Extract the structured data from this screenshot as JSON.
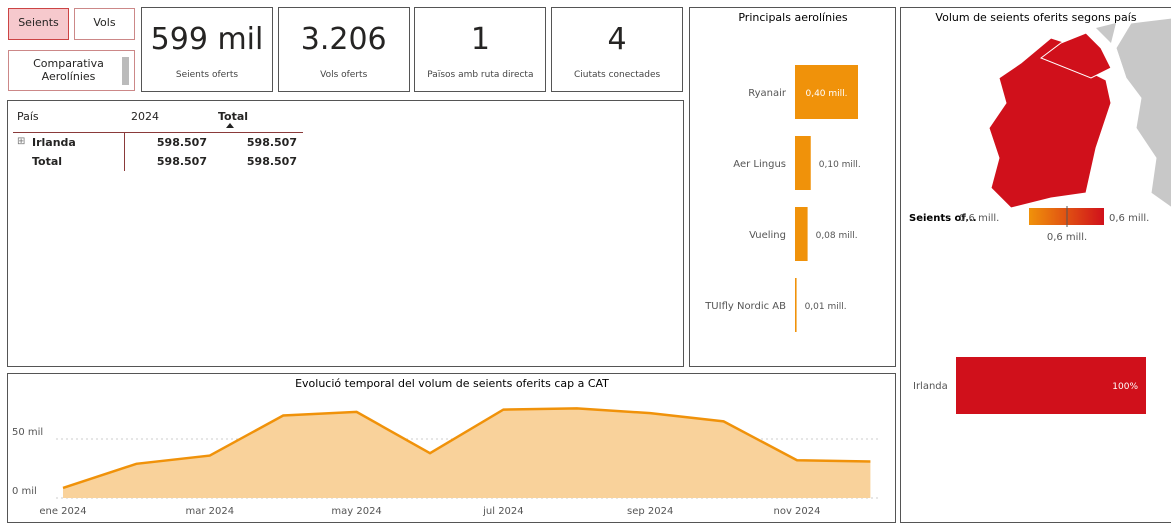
{
  "buttons": [
    "Seients",
    "Vols",
    "Comparativa Aerolínies"
  ],
  "kpis": [
    {
      "value": "599 mil",
      "label": "Seients oferts"
    },
    {
      "value": "3.206",
      "label": "Vols oferts"
    },
    {
      "value": "1",
      "label": "Països amb ruta directa"
    },
    {
      "value": "4",
      "label": "Ciutats conectades"
    }
  ],
  "table": {
    "headers": [
      "País",
      "2024",
      "Total"
    ],
    "rows": [
      [
        "Irlanda",
        "598.507",
        "598.507"
      ],
      [
        "Total",
        "598.507",
        "598.507"
      ]
    ]
  },
  "airlines": {
    "type": "bar",
    "title": "Principals aerolínies",
    "categories": [
      "Ryanair",
      "Aer Lingus",
      "Vueling",
      "TUIfly Nordic AB"
    ],
    "values": [
      0.4,
      0.1,
      0.08,
      0.01
    ],
    "value_labels": [
      "0,40 mill.",
      "0,10 mill.",
      "0,08 mill.",
      "0,01 mill."
    ],
    "color": "#f0920a"
  },
  "map": {
    "title": "Volum de seients oferits segons país",
    "legend_title": "Seients of...",
    "legend_min": "0,6 mill.",
    "legend_max": "0,6 mill.",
    "legend_mid": "0,6 mill.",
    "categories": [
      "Irlanda"
    ],
    "values": [
      100
    ],
    "value_labels": [
      "100%"
    ],
    "color": "#d0101b"
  },
  "timeline": {
    "type": "area",
    "title": "Evolució temporal del volum de seients oferits cap a CAT",
    "categories": [
      "ene 2024",
      null,
      "mar 2024",
      null,
      "may 2024",
      null,
      "jul 2024",
      null,
      "sep 2024",
      null,
      "nov 2024",
      null
    ],
    "values": [
      8.5,
      29,
      36,
      70,
      73,
      38,
      75,
      76,
      72,
      65,
      32,
      31
    ],
    "ylim": [
      0,
      95
    ],
    "yticks": [
      {
        "value": 0,
        "label": "0 mil"
      },
      {
        "value": 50,
        "label": "50 mil"
      }
    ],
    "color": "#f0920a",
    "fill": "#f9d29b",
    "grid": true
  }
}
